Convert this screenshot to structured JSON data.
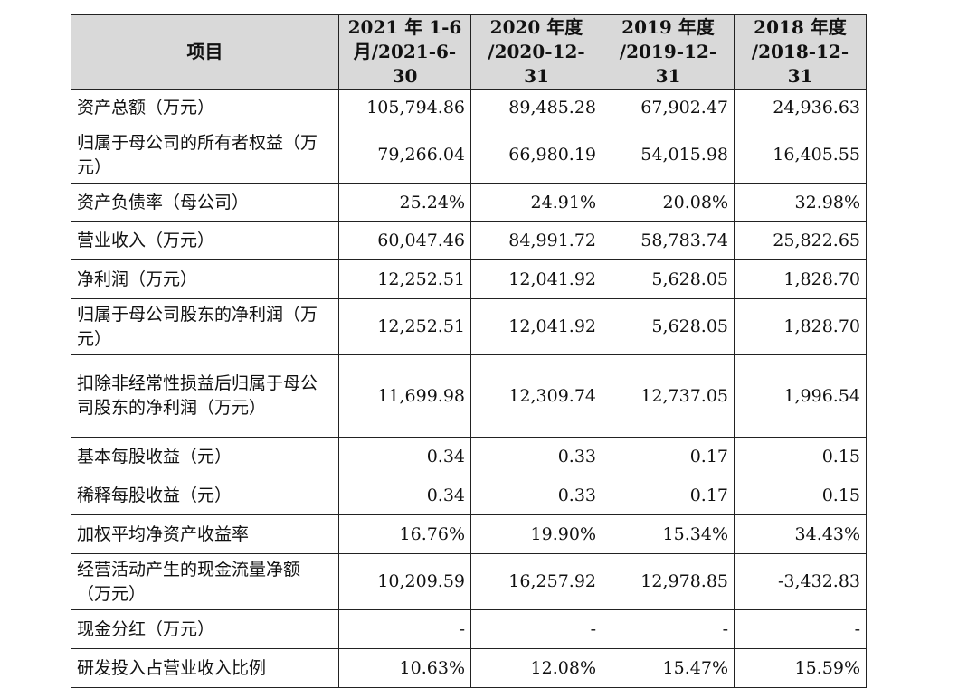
{
  "header": {
    "item": "项目",
    "periods": [
      [
        "2021 年 1-6",
        "月/2021-6-30"
      ],
      [
        "2020 年度",
        "/2020-12-31"
      ],
      [
        "2019 年度",
        "/2019-12-31"
      ],
      [
        "2018 年度",
        "/2018-12-31"
      ]
    ]
  },
  "rows": [
    {
      "label": "资产总额（万元）",
      "values": [
        "105,794.86",
        "89,485.28",
        "67,902.47",
        "24,936.63"
      ]
    },
    {
      "label": "归属于母公司的所有者权益（万元）",
      "values": [
        "79,266.04",
        "66,980.19",
        "54,015.98",
        "16,405.55"
      ]
    },
    {
      "label": "资产负债率（母公司）",
      "values": [
        "25.24%",
        "24.91%",
        "20.08%",
        "32.98%"
      ]
    },
    {
      "label": "营业收入（万元）",
      "values": [
        "60,047.46",
        "84,991.72",
        "58,783.74",
        "25,822.65"
      ]
    },
    {
      "label": "净利润（万元）",
      "values": [
        "12,252.51",
        "12,041.92",
        "5,628.05",
        "1,828.70"
      ]
    },
    {
      "label": "归属于母公司股东的净利润（万元）",
      "values": [
        "12,252.51",
        "12,041.92",
        "5,628.05",
        "1,828.70"
      ]
    },
    {
      "label": "扣除非经常性损益后归属于母公司股东的净利润（万元）",
      "values": [
        "11,699.98",
        "12,309.74",
        "12,737.05",
        "1,996.54"
      ]
    },
    {
      "label": "基本每股收益（元）",
      "values": [
        "0.34",
        "0.33",
        "0.17",
        "0.15"
      ]
    },
    {
      "label": "稀释每股收益（元）",
      "values": [
        "0.34",
        "0.33",
        "0.17",
        "0.15"
      ]
    },
    {
      "label": "加权平均净资产收益率",
      "values": [
        "16.76%",
        "19.90%",
        "15.34%",
        "34.43%"
      ]
    },
    {
      "label": "经营活动产生的现金流量净额（万元）",
      "values": [
        "10,209.59",
        "16,257.92",
        "12,978.85",
        "-3,432.83"
      ]
    },
    {
      "label": "现金分红（万元）",
      "values": [
        "-",
        "-",
        "-",
        "-"
      ]
    },
    {
      "label": "研发投入占营业收入比例",
      "values": [
        "10.63%",
        "12.08%",
        "15.47%",
        "15.59%"
      ]
    }
  ]
}
